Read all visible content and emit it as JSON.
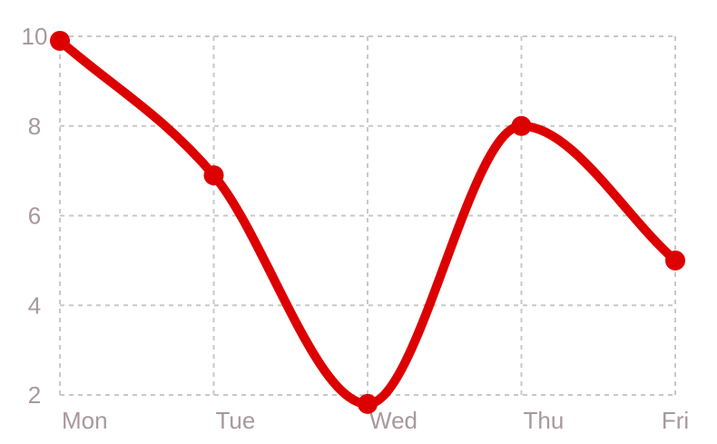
{
  "chart_data": {
    "type": "line",
    "categories": [
      "Mon",
      "Tue",
      "Wed",
      "Thu",
      "Fri"
    ],
    "series": [
      {
        "values": [
          9.9,
          6.9,
          1.8,
          8.0,
          5.0
        ]
      }
    ],
    "ylim": [
      2,
      10
    ],
    "yticks": [
      "2",
      "4",
      "6",
      "8",
      "10"
    ],
    "grid": true,
    "smooth": true,
    "color": "#dd0000",
    "title": "",
    "xlabel": "",
    "ylabel": ""
  }
}
